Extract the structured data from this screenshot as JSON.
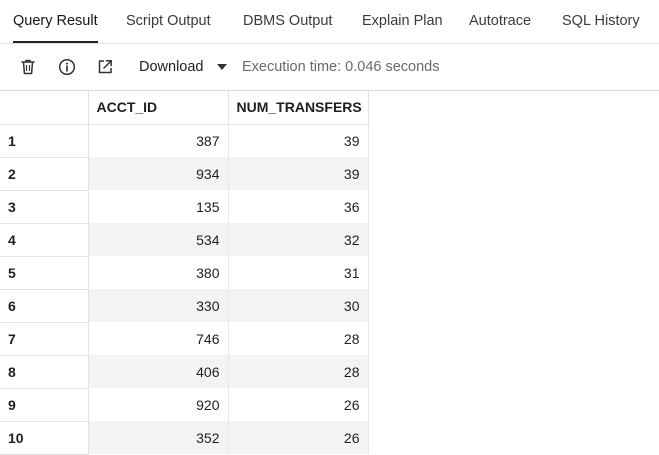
{
  "tabs": [
    {
      "label": "Query Result",
      "active": true
    },
    {
      "label": "Script Output"
    },
    {
      "label": "DBMS Output"
    },
    {
      "label": "Explain Plan"
    },
    {
      "label": "Autotrace"
    },
    {
      "label": "SQL History"
    }
  ],
  "toolbar": {
    "icons": [
      "trash-icon",
      "info-icon",
      "open-external-icon",
      "chevron-down-icon"
    ],
    "download_label": "Download",
    "execution_time": "Execution time: 0.046 seconds"
  },
  "grid": {
    "columns": [
      "ACCT_ID",
      "NUM_TRANSFERS"
    ],
    "rows": [
      {
        "n": "1",
        "acct_id": "387",
        "num_transfers": "39"
      },
      {
        "n": "2",
        "acct_id": "934",
        "num_transfers": "39"
      },
      {
        "n": "3",
        "acct_id": "135",
        "num_transfers": "36"
      },
      {
        "n": "4",
        "acct_id": "534",
        "num_transfers": "32"
      },
      {
        "n": "5",
        "acct_id": "380",
        "num_transfers": "31"
      },
      {
        "n": "6",
        "acct_id": "330",
        "num_transfers": "30"
      },
      {
        "n": "7",
        "acct_id": "746",
        "num_transfers": "28"
      },
      {
        "n": "8",
        "acct_id": "406",
        "num_transfers": "28"
      },
      {
        "n": "9",
        "acct_id": "920",
        "num_transfers": "26"
      },
      {
        "n": "10",
        "acct_id": "352",
        "num_transfers": "26"
      }
    ]
  }
}
